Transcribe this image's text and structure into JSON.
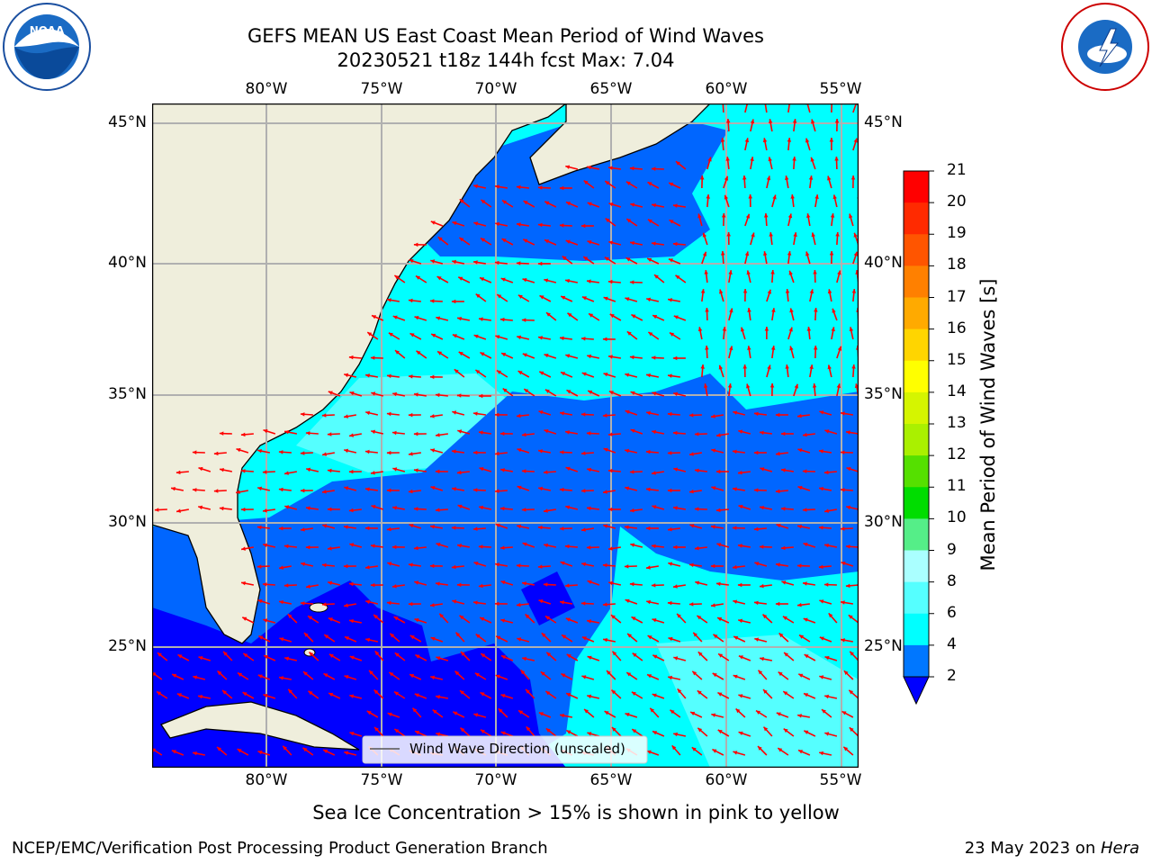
{
  "header": {
    "title_line1": "GEFS MEAN US East Coast Mean Period of Wind Waves",
    "title_line2": "20230521 t18z 144h fcst   Max: 7.04"
  },
  "logos": {
    "left": "NOAA",
    "left_ring": "NATIONAL OCEANIC AND ATMOSPHERIC ADMINISTRATION • U.S. DEPARTMENT OF COMMERCE",
    "right_ring": "NATIONAL WEATHER SERVICE"
  },
  "map": {
    "lon_labels": [
      "80°W",
      "75°W",
      "70°W",
      "65°W",
      "60°W",
      "55°W"
    ],
    "lat_labels": [
      "45°N",
      "40°N",
      "35°N",
      "30°N",
      "25°N"
    ],
    "legend_label": "Wind Wave Direction (unscaled)",
    "colors": {
      "land": "#efeedc",
      "grid": "#b0b0b0",
      "arrow": "#ff0000",
      "bin_2_4": "#0066ff",
      "bin_4_6": "#00ffff",
      "bin_lt2": "#0000ff"
    }
  },
  "colorbar": {
    "label": "Mean Period of Wind Waves [s]",
    "tick_labels": [
      "21",
      "20",
      "19",
      "18",
      "17",
      "16",
      "15",
      "14",
      "13",
      "12",
      "11",
      "10",
      "9",
      "8",
      "6",
      "4",
      "2"
    ],
    "bins": [
      {
        "range": "20-21",
        "color": "#ff0000"
      },
      {
        "range": "19-20",
        "color": "#ff2a00"
      },
      {
        "range": "18-19",
        "color": "#ff5500"
      },
      {
        "range": "17-18",
        "color": "#ff8000"
      },
      {
        "range": "16-17",
        "color": "#ffaa00"
      },
      {
        "range": "15-16",
        "color": "#ffd500"
      },
      {
        "range": "14-15",
        "color": "#ffff00"
      },
      {
        "range": "13-14",
        "color": "#d5f500"
      },
      {
        "range": "12-13",
        "color": "#aaf000"
      },
      {
        "range": "11-12",
        "color": "#55e000"
      },
      {
        "range": "10-11",
        "color": "#00dd00"
      },
      {
        "range": "9-10",
        "color": "#55ee88"
      },
      {
        "range": "8-9",
        "color": "#aaffff"
      },
      {
        "range": "6-8",
        "color": "#55ffff"
      },
      {
        "range": "4-6",
        "color": "#00ffff"
      },
      {
        "range": "2-4",
        "color": "#0077ff"
      },
      {
        "range": "<2",
        "color": "#0000ff"
      }
    ]
  },
  "caption": "Sea Ice Concentration > 15% is shown in pink to yellow",
  "footer": {
    "left": "NCEP/EMC/Verification Post Processing Product Generation Branch",
    "date": "23 May 2023 on ",
    "machine": "Hera"
  }
}
